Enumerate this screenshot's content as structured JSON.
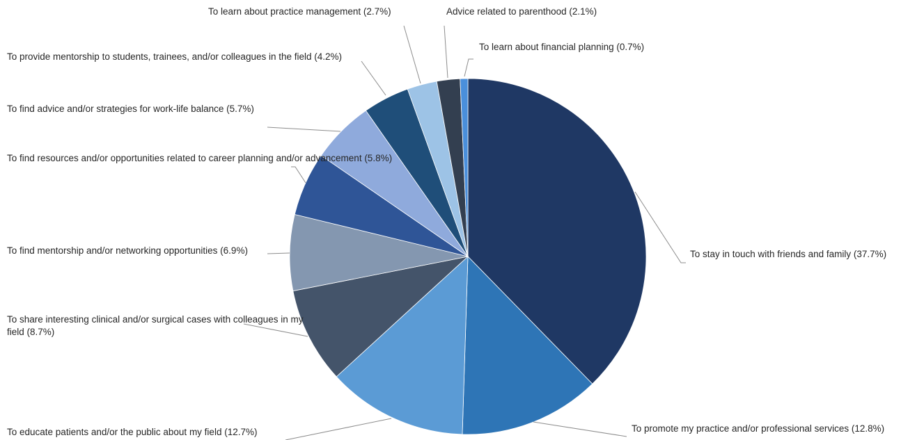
{
  "chart_data": {
    "type": "pie",
    "title": "",
    "start_angle_deg": 0,
    "direction": "clockwise",
    "slices": [
      {
        "label": "To stay in touch with friends and family  (37.7%)",
        "value": 37.7,
        "color": "#1f3864"
      },
      {
        "label": "To promote my practice and/or professional services (12.8%)",
        "value": 12.8,
        "color": "#2e75b6"
      },
      {
        "label": "To educate patients and/or the public about my field (12.7%)",
        "value": 12.7,
        "color": "#5b9bd5"
      },
      {
        "label": "To share interesting clinical and/or surgical cases with colleagues in my field (8.7%)",
        "value": 8.7,
        "color": "#44546a"
      },
      {
        "label": "To find mentorship and/or networking opportunities (6.9%)",
        "value": 6.9,
        "color": "#8497b0"
      },
      {
        "label": "To find resources and/or opportunities related to career planning and/or advancement (5.8%)",
        "value": 5.8,
        "color": "#2f5597"
      },
      {
        "label": "To find advice and/or strategies for work-life balance (5.7%)",
        "value": 5.7,
        "color": "#8faadc"
      },
      {
        "label": "To provide mentorship to students, trainees, and/or colleagues in the field (4.2%)",
        "value": 4.2,
        "color": "#1f4e79"
      },
      {
        "label": "To learn about practice management (2.7%)",
        "value": 2.7,
        "color": "#9dc3e6"
      },
      {
        "label": "Advice related to parenthood (2.1%)",
        "value": 2.1,
        "color": "#333f50"
      },
      {
        "label": "To learn about financial planning (0.7%)",
        "value": 0.7,
        "color": "#4a8fdb"
      }
    ]
  }
}
